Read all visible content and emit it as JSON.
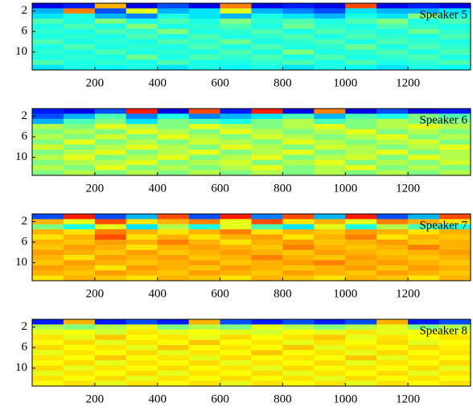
{
  "chart_data": [
    {
      "type": "heatmap",
      "annotation": "Speaker 5",
      "colormap": "jet",
      "y_reversed": true,
      "xlim": [
        0,
        1400
      ],
      "ylim": [
        0.5,
        13.5
      ],
      "xticks": [
        200,
        400,
        600,
        800,
        1000,
        1200
      ],
      "yticks": [
        2,
        6,
        10
      ],
      "xbins": [
        0,
        100,
        200,
        300,
        400,
        500,
        600,
        700,
        800,
        900,
        1000,
        1100,
        1200,
        1300,
        1400
      ],
      "y": [
        1,
        2,
        3,
        4,
        5,
        6,
        7,
        8,
        9,
        10,
        11,
        12,
        13
      ],
      "z": [
        [
          0.1,
          0.15,
          0.7,
          0.1,
          0.2,
          0.1,
          0.75,
          0.1,
          0.15,
          0.1,
          0.8,
          0.1,
          0.15,
          0.1
        ],
        [
          0.3,
          0.75,
          0.2,
          0.6,
          0.3,
          0.35,
          0.6,
          0.3,
          0.25,
          0.2,
          0.35,
          0.3,
          0.3,
          0.35
        ],
        [
          0.35,
          0.4,
          0.3,
          0.25,
          0.4,
          0.35,
          0.3,
          0.4,
          0.35,
          0.3,
          0.4,
          0.35,
          0.5,
          0.4
        ],
        [
          0.45,
          0.4,
          0.5,
          0.4,
          0.45,
          0.4,
          0.5,
          0.42,
          0.45,
          0.4,
          0.45,
          0.5,
          0.4,
          0.45
        ],
        [
          0.4,
          0.45,
          0.4,
          0.5,
          0.4,
          0.42,
          0.45,
          0.4,
          0.48,
          0.42,
          0.4,
          0.45,
          0.42,
          0.4
        ],
        [
          0.42,
          0.4,
          0.45,
          0.42,
          0.5,
          0.4,
          0.42,
          0.45,
          0.4,
          0.45,
          0.42,
          0.4,
          0.48,
          0.42
        ],
        [
          0.4,
          0.42,
          0.4,
          0.45,
          0.4,
          0.45,
          0.4,
          0.42,
          0.45,
          0.4,
          0.45,
          0.42,
          0.4,
          0.45
        ],
        [
          0.45,
          0.4,
          0.42,
          0.4,
          0.45,
          0.42,
          0.48,
          0.4,
          0.42,
          0.45,
          0.4,
          0.45,
          0.42,
          0.4
        ],
        [
          0.4,
          0.45,
          0.4,
          0.42,
          0.4,
          0.45,
          0.4,
          0.45,
          0.4,
          0.42,
          0.48,
          0.4,
          0.45,
          0.42
        ],
        [
          0.42,
          0.4,
          0.45,
          0.4,
          0.42,
          0.4,
          0.45,
          0.4,
          0.5,
          0.4,
          0.42,
          0.45,
          0.4,
          0.45
        ],
        [
          0.4,
          0.42,
          0.4,
          0.48,
          0.4,
          0.45,
          0.42,
          0.45,
          0.4,
          0.45,
          0.4,
          0.42,
          0.45,
          0.4
        ],
        [
          0.45,
          0.4,
          0.42,
          0.4,
          0.45,
          0.4,
          0.4,
          0.42,
          0.45,
          0.4,
          0.45,
          0.4,
          0.42,
          0.45
        ],
        [
          0.35,
          0.4,
          0.38,
          0.4,
          0.35,
          0.4,
          0.38,
          0.4,
          0.35,
          0.4,
          0.38,
          0.35,
          0.4,
          0.38
        ]
      ]
    },
    {
      "type": "heatmap",
      "annotation": "Speaker 6",
      "colormap": "jet",
      "y_reversed": true,
      "xlim": [
        0,
        1400
      ],
      "ylim": [
        0.5,
        13.5
      ],
      "xticks": [
        200,
        400,
        600,
        800,
        1000,
        1200
      ],
      "yticks": [
        2,
        6,
        10
      ],
      "xbins": [
        0,
        100,
        200,
        300,
        400,
        500,
        600,
        700,
        800,
        900,
        1000,
        1100,
        1200,
        1300,
        1400
      ],
      "y": [
        1,
        2,
        3,
        4,
        5,
        6,
        7,
        8,
        9,
        10,
        11,
        12,
        13
      ],
      "z": [
        [
          0.15,
          0.1,
          0.2,
          0.85,
          0.1,
          0.8,
          0.15,
          0.85,
          0.1,
          0.75,
          0.1,
          0.2,
          0.1,
          0.15
        ],
        [
          0.2,
          0.3,
          0.45,
          0.25,
          0.4,
          0.25,
          0.3,
          0.35,
          0.45,
          0.3,
          0.45,
          0.4,
          0.5,
          0.45
        ],
        [
          0.3,
          0.45,
          0.5,
          0.35,
          0.5,
          0.45,
          0.4,
          0.5,
          0.55,
          0.45,
          0.5,
          0.55,
          0.5,
          0.5
        ],
        [
          0.55,
          0.5,
          0.6,
          0.55,
          0.5,
          0.6,
          0.55,
          0.5,
          0.55,
          0.6,
          0.5,
          0.55,
          0.6,
          0.55
        ],
        [
          0.5,
          0.55,
          0.5,
          0.6,
          0.55,
          0.5,
          0.6,
          0.55,
          0.5,
          0.55,
          0.6,
          0.5,
          0.55,
          0.5
        ],
        [
          0.55,
          0.5,
          0.58,
          0.5,
          0.6,
          0.55,
          0.5,
          0.58,
          0.55,
          0.5,
          0.55,
          0.6,
          0.5,
          0.55
        ],
        [
          0.5,
          0.6,
          0.5,
          0.55,
          0.5,
          0.58,
          0.55,
          0.5,
          0.6,
          0.55,
          0.5,
          0.55,
          0.58,
          0.5
        ],
        [
          0.58,
          0.5,
          0.55,
          0.6,
          0.55,
          0.5,
          0.6,
          0.55,
          0.5,
          0.58,
          0.55,
          0.5,
          0.55,
          0.6
        ],
        [
          0.5,
          0.55,
          0.6,
          0.5,
          0.55,
          0.6,
          0.5,
          0.55,
          0.6,
          0.5,
          0.55,
          0.6,
          0.5,
          0.55
        ],
        [
          0.55,
          0.6,
          0.5,
          0.55,
          0.6,
          0.5,
          0.55,
          0.6,
          0.5,
          0.55,
          0.58,
          0.5,
          0.6,
          0.55
        ],
        [
          0.5,
          0.55,
          0.55,
          0.6,
          0.5,
          0.55,
          0.58,
          0.5,
          0.55,
          0.6,
          0.5,
          0.55,
          0.5,
          0.58
        ],
        [
          0.55,
          0.5,
          0.6,
          0.5,
          0.55,
          0.5,
          0.55,
          0.6,
          0.5,
          0.55,
          0.6,
          0.5,
          0.55,
          0.5
        ],
        [
          0.5,
          0.55,
          0.5,
          0.55,
          0.5,
          0.55,
          0.5,
          0.55,
          0.5,
          0.55,
          0.5,
          0.55,
          0.5,
          0.55
        ]
      ]
    },
    {
      "type": "heatmap",
      "annotation": "Speaker 7",
      "colormap": "jet",
      "y_reversed": true,
      "xlim": [
        0,
        1400
      ],
      "ylim": [
        0.5,
        13.5
      ],
      "xticks": [
        200,
        400,
        600,
        800,
        1000,
        1200
      ],
      "yticks": [
        2,
        6,
        10
      ],
      "xbins": [
        0,
        100,
        200,
        300,
        400,
        500,
        600,
        700,
        800,
        900,
        1000,
        1100,
        1200,
        1300,
        1400
      ],
      "y": [
        1,
        2,
        3,
        4,
        5,
        6,
        7,
        8,
        9,
        10,
        11,
        12,
        13
      ],
      "z": [
        [
          0.2,
          0.85,
          0.2,
          0.3,
          0.8,
          0.2,
          0.85,
          0.25,
          0.8,
          0.3,
          0.85,
          0.2,
          0.3,
          0.8
        ],
        [
          0.7,
          0.6,
          0.8,
          0.65,
          0.7,
          0.75,
          0.6,
          0.8,
          0.65,
          0.7,
          0.6,
          0.75,
          0.7,
          0.65
        ],
        [
          0.5,
          0.4,
          0.6,
          0.35,
          0.55,
          0.4,
          0.6,
          0.45,
          0.35,
          0.6,
          0.4,
          0.55,
          0.45,
          0.4
        ],
        [
          0.7,
          0.65,
          0.75,
          0.7,
          0.65,
          0.7,
          0.75,
          0.65,
          0.7,
          0.68,
          0.72,
          0.7,
          0.65,
          0.7
        ],
        [
          0.65,
          0.7,
          0.8,
          0.65,
          0.7,
          0.65,
          0.7,
          0.72,
          0.65,
          0.7,
          0.75,
          0.65,
          0.7,
          0.68
        ],
        [
          0.7,
          0.68,
          0.72,
          0.7,
          0.75,
          0.7,
          0.65,
          0.7,
          0.72,
          0.68,
          0.7,
          0.72,
          0.68,
          0.7
        ],
        [
          0.68,
          0.72,
          0.7,
          0.65,
          0.7,
          0.72,
          0.7,
          0.68,
          0.75,
          0.7,
          0.68,
          0.7,
          0.75,
          0.7
        ],
        [
          0.72,
          0.7,
          0.68,
          0.72,
          0.68,
          0.7,
          0.72,
          0.7,
          0.68,
          0.72,
          0.7,
          0.68,
          0.7,
          0.72
        ],
        [
          0.7,
          0.65,
          0.72,
          0.7,
          0.72,
          0.68,
          0.7,
          0.75,
          0.7,
          0.68,
          0.72,
          0.7,
          0.68,
          0.7
        ],
        [
          0.68,
          0.72,
          0.7,
          0.68,
          0.7,
          0.72,
          0.68,
          0.7,
          0.72,
          0.75,
          0.7,
          0.72,
          0.7,
          0.68
        ],
        [
          0.72,
          0.7,
          0.65,
          0.72,
          0.7,
          0.68,
          0.72,
          0.7,
          0.68,
          0.7,
          0.72,
          0.68,
          0.72,
          0.7
        ],
        [
          0.7,
          0.68,
          0.72,
          0.7,
          0.68,
          0.72,
          0.7,
          0.68,
          0.72,
          0.7,
          0.68,
          0.72,
          0.7,
          0.68
        ],
        [
          0.65,
          0.7,
          0.68,
          0.65,
          0.7,
          0.68,
          0.65,
          0.7,
          0.68,
          0.65,
          0.7,
          0.68,
          0.65,
          0.7
        ]
      ]
    },
    {
      "type": "heatmap",
      "annotation": "Speaker 8",
      "colormap": "jet",
      "y_reversed": true,
      "xlim": [
        0,
        1400
      ],
      "ylim": [
        0.5,
        13.5
      ],
      "xticks": [
        200,
        400,
        600,
        800,
        1000,
        1200
      ],
      "yticks": [
        2,
        6,
        10
      ],
      "xbins": [
        0,
        100,
        200,
        300,
        400,
        500,
        600,
        700,
        800,
        900,
        1000,
        1100,
        1200,
        1300,
        1400
      ],
      "y": [
        1,
        2,
        3,
        4,
        5,
        6,
        7,
        8,
        9,
        10,
        11,
        12,
        13
      ],
      "z": [
        [
          0.15,
          0.7,
          0.15,
          0.2,
          0.15,
          0.7,
          0.2,
          0.15,
          0.2,
          0.15,
          0.2,
          0.7,
          0.15,
          0.2
        ],
        [
          0.55,
          0.5,
          0.55,
          0.6,
          0.5,
          0.55,
          0.5,
          0.6,
          0.55,
          0.5,
          0.55,
          0.6,
          0.5,
          0.55
        ],
        [
          0.6,
          0.62,
          0.58,
          0.65,
          0.6,
          0.62,
          0.6,
          0.58,
          0.62,
          0.6,
          0.65,
          0.6,
          0.62,
          0.6
        ],
        [
          0.65,
          0.6,
          0.68,
          0.62,
          0.65,
          0.6,
          0.66,
          0.62,
          0.65,
          0.68,
          0.6,
          0.65,
          0.62,
          0.65
        ],
        [
          0.62,
          0.66,
          0.6,
          0.65,
          0.62,
          0.68,
          0.62,
          0.65,
          0.6,
          0.65,
          0.62,
          0.66,
          0.6,
          0.62
        ],
        [
          0.66,
          0.62,
          0.65,
          0.6,
          0.68,
          0.62,
          0.65,
          0.62,
          0.68,
          0.6,
          0.65,
          0.62,
          0.66,
          0.64
        ],
        [
          0.6,
          0.65,
          0.62,
          0.66,
          0.6,
          0.65,
          0.62,
          0.68,
          0.62,
          0.65,
          0.6,
          0.66,
          0.62,
          0.65
        ],
        [
          0.65,
          0.62,
          0.68,
          0.62,
          0.65,
          0.6,
          0.66,
          0.62,
          0.65,
          0.62,
          0.68,
          0.6,
          0.65,
          0.62
        ],
        [
          0.62,
          0.66,
          0.6,
          0.65,
          0.62,
          0.66,
          0.6,
          0.65,
          0.62,
          0.66,
          0.6,
          0.65,
          0.62,
          0.66
        ],
        [
          0.66,
          0.6,
          0.65,
          0.62,
          0.66,
          0.62,
          0.65,
          0.6,
          0.66,
          0.62,
          0.65,
          0.62,
          0.66,
          0.6
        ],
        [
          0.6,
          0.65,
          0.62,
          0.66,
          0.6,
          0.65,
          0.62,
          0.66,
          0.6,
          0.65,
          0.62,
          0.66,
          0.6,
          0.65
        ],
        [
          0.65,
          0.62,
          0.66,
          0.6,
          0.65,
          0.62,
          0.66,
          0.62,
          0.65,
          0.6,
          0.66,
          0.62,
          0.65,
          0.62
        ],
        [
          0.62,
          0.65,
          0.6,
          0.65,
          0.62,
          0.65,
          0.6,
          0.65,
          0.62,
          0.65,
          0.6,
          0.65,
          0.62,
          0.65
        ]
      ]
    }
  ]
}
